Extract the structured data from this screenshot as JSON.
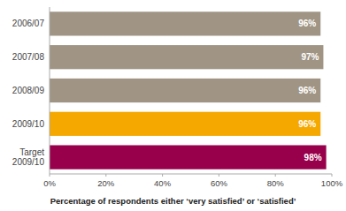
{
  "chart_data": {
    "type": "bar",
    "orientation": "horizontal",
    "categories": [
      "2006/07",
      "2007/08",
      "2008/09",
      "2009/10",
      "Target\n2009/10"
    ],
    "values": [
      96,
      97,
      96,
      96,
      98
    ],
    "value_labels": [
      "96%",
      "97%",
      "96%",
      "96%",
      "98%"
    ],
    "data_labels": true,
    "colors": [
      "#a09585",
      "#a09585",
      "#a09585",
      "#f5a800",
      "#99004c"
    ],
    "xlabel": "Percentage of respondents either ‘very satisfied’ or ‘satisfied’",
    "xlim": [
      0,
      100
    ],
    "xticks": [
      {
        "value": 0,
        "label": "0%"
      },
      {
        "value": 20,
        "label": "20%"
      },
      {
        "value": 40,
        "label": "40%"
      },
      {
        "value": 60,
        "label": "60%"
      },
      {
        "value": 80,
        "label": "80%"
      },
      {
        "value": 100,
        "label": "100%"
      }
    ],
    "grid": false
  }
}
